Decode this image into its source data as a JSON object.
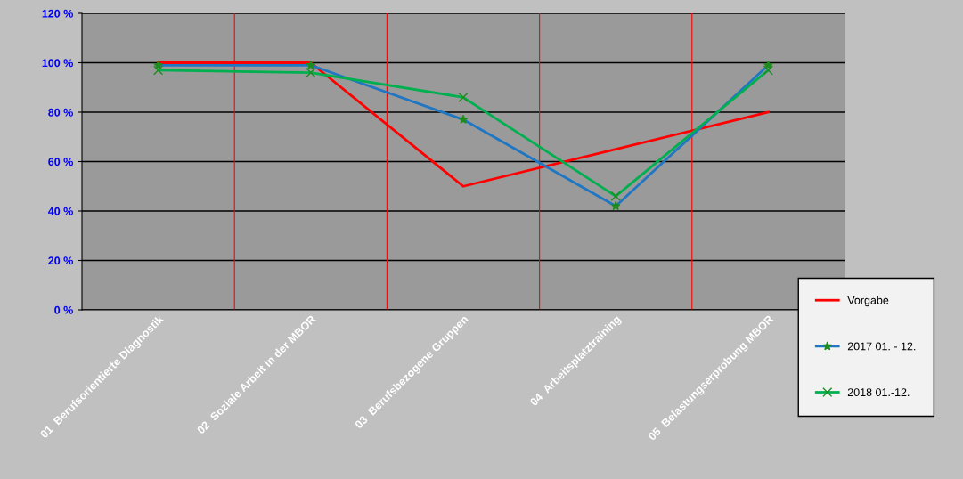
{
  "chart_data": {
    "type": "line",
    "categories": [
      "01  Berufsorientierte Diagnostik",
      "02  Soziale Arbeit in der MBOR",
      "03  Berufsbezogene Gruppen",
      "04  Arbeitsplatztraining",
      "05  Belastungserprobung MBOR"
    ],
    "series": [
      {
        "name": "Vorgabe",
        "color": "#ff0000",
        "marker": "none",
        "values": [
          100,
          100,
          50,
          65,
          80
        ]
      },
      {
        "name": "2017 01. - 12.",
        "color": "#1f77c4",
        "marker": "star",
        "values": [
          99,
          99,
          77,
          42,
          99
        ]
      },
      {
        "name": "2018 01.-12.",
        "color": "#00b050",
        "marker": "cross",
        "values": [
          97,
          96,
          86,
          46,
          97
        ]
      }
    ],
    "ylim": [
      0,
      120
    ],
    "yticks": [
      {
        "value": 0,
        "label": "0 %"
      },
      {
        "value": 20,
        "label": "20 %"
      },
      {
        "value": 40,
        "label": "40 %"
      },
      {
        "value": 60,
        "label": "60 %"
      },
      {
        "value": 80,
        "label": "80 %"
      },
      {
        "value": 100,
        "label": "100 %"
      },
      {
        "value": 120,
        "label": "120 %"
      }
    ],
    "grid": true,
    "legend": "right"
  }
}
